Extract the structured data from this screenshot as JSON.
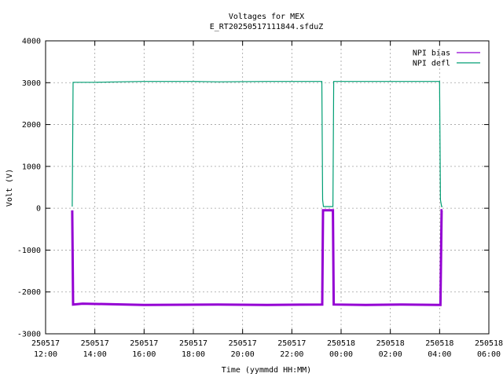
{
  "chart_data": {
    "type": "line",
    "title": "Voltages for MEX",
    "subtitle": "E_RT20250517111844.sfduZ",
    "xlabel": "Time (yymmdd HH:MM)",
    "ylabel": "Volt (V)",
    "xlim": [
      "2025-05-17 12:00",
      "2025-05-18 06:00"
    ],
    "ylim": [
      -3000,
      4000
    ],
    "grid": true,
    "legend": "top-right",
    "x_ticks": [
      {
        "at": "2025-05-17 12:00",
        "date": "250517",
        "time": "12:00"
      },
      {
        "at": "2025-05-17 14:00",
        "date": "250517",
        "time": "14:00"
      },
      {
        "at": "2025-05-17 16:00",
        "date": "250517",
        "time": "16:00"
      },
      {
        "at": "2025-05-17 18:00",
        "date": "250517",
        "time": "18:00"
      },
      {
        "at": "2025-05-17 20:00",
        "date": "250517",
        "time": "20:00"
      },
      {
        "at": "2025-05-17 22:00",
        "date": "250517",
        "time": "22:00"
      },
      {
        "at": "2025-05-18 00:00",
        "date": "250518",
        "time": "00:00"
      },
      {
        "at": "2025-05-18 02:00",
        "date": "250518",
        "time": "02:00"
      },
      {
        "at": "2025-05-18 04:00",
        "date": "250518",
        "time": "04:00"
      },
      {
        "at": "2025-05-18 06:00",
        "date": "250518",
        "time": "06:00"
      }
    ],
    "y_ticks": [
      4000,
      3000,
      2000,
      1000,
      0,
      -1000,
      -2000,
      -3000
    ],
    "series": [
      {
        "name": "NPI bias",
        "color": "#9400d3",
        "points": [
          [
            "2025-05-17 13:05",
            -50
          ],
          [
            "2025-05-17 13:07",
            -2300
          ],
          [
            "2025-05-17 13:30",
            -2280
          ],
          [
            "2025-05-17 16:00",
            -2310
          ],
          [
            "2025-05-17 19:00",
            -2300
          ],
          [
            "2025-05-17 21:00",
            -2310
          ],
          [
            "2025-05-17 23:14",
            -2300
          ],
          [
            "2025-05-17 23:16",
            -50
          ],
          [
            "2025-05-17 23:40",
            -50
          ],
          [
            "2025-05-17 23:42",
            -2300
          ],
          [
            "2025-05-18 01:00",
            -2310
          ],
          [
            "2025-05-18 02:30",
            -2300
          ],
          [
            "2025-05-18 04:02",
            -2310
          ],
          [
            "2025-05-18 04:05",
            -50
          ],
          [
            "2025-05-18 04:07",
            -50
          ]
        ]
      },
      {
        "name": "NPI defl",
        "color": "#009e73",
        "points": [
          [
            "2025-05-17 13:05",
            40
          ],
          [
            "2025-05-17 13:07",
            3010
          ],
          [
            "2025-05-17 14:00",
            3010
          ],
          [
            "2025-05-17 15:00",
            3020
          ],
          [
            "2025-05-17 16:00",
            3030
          ],
          [
            "2025-05-17 18:00",
            3030
          ],
          [
            "2025-05-17 19:00",
            3020
          ],
          [
            "2025-05-17 21:00",
            3030
          ],
          [
            "2025-05-17 23:13",
            3030
          ],
          [
            "2025-05-17 23:15",
            200
          ],
          [
            "2025-05-17 23:17",
            40
          ],
          [
            "2025-05-17 23:40",
            40
          ],
          [
            "2025-05-17 23:42",
            3030
          ],
          [
            "2025-05-18 01:00",
            3030
          ],
          [
            "2025-05-18 02:30",
            3030
          ],
          [
            "2025-05-18 04:00",
            3030
          ],
          [
            "2025-05-18 04:02",
            200
          ],
          [
            "2025-05-18 04:05",
            40
          ],
          [
            "2025-05-18 04:07",
            40
          ]
        ]
      }
    ]
  }
}
